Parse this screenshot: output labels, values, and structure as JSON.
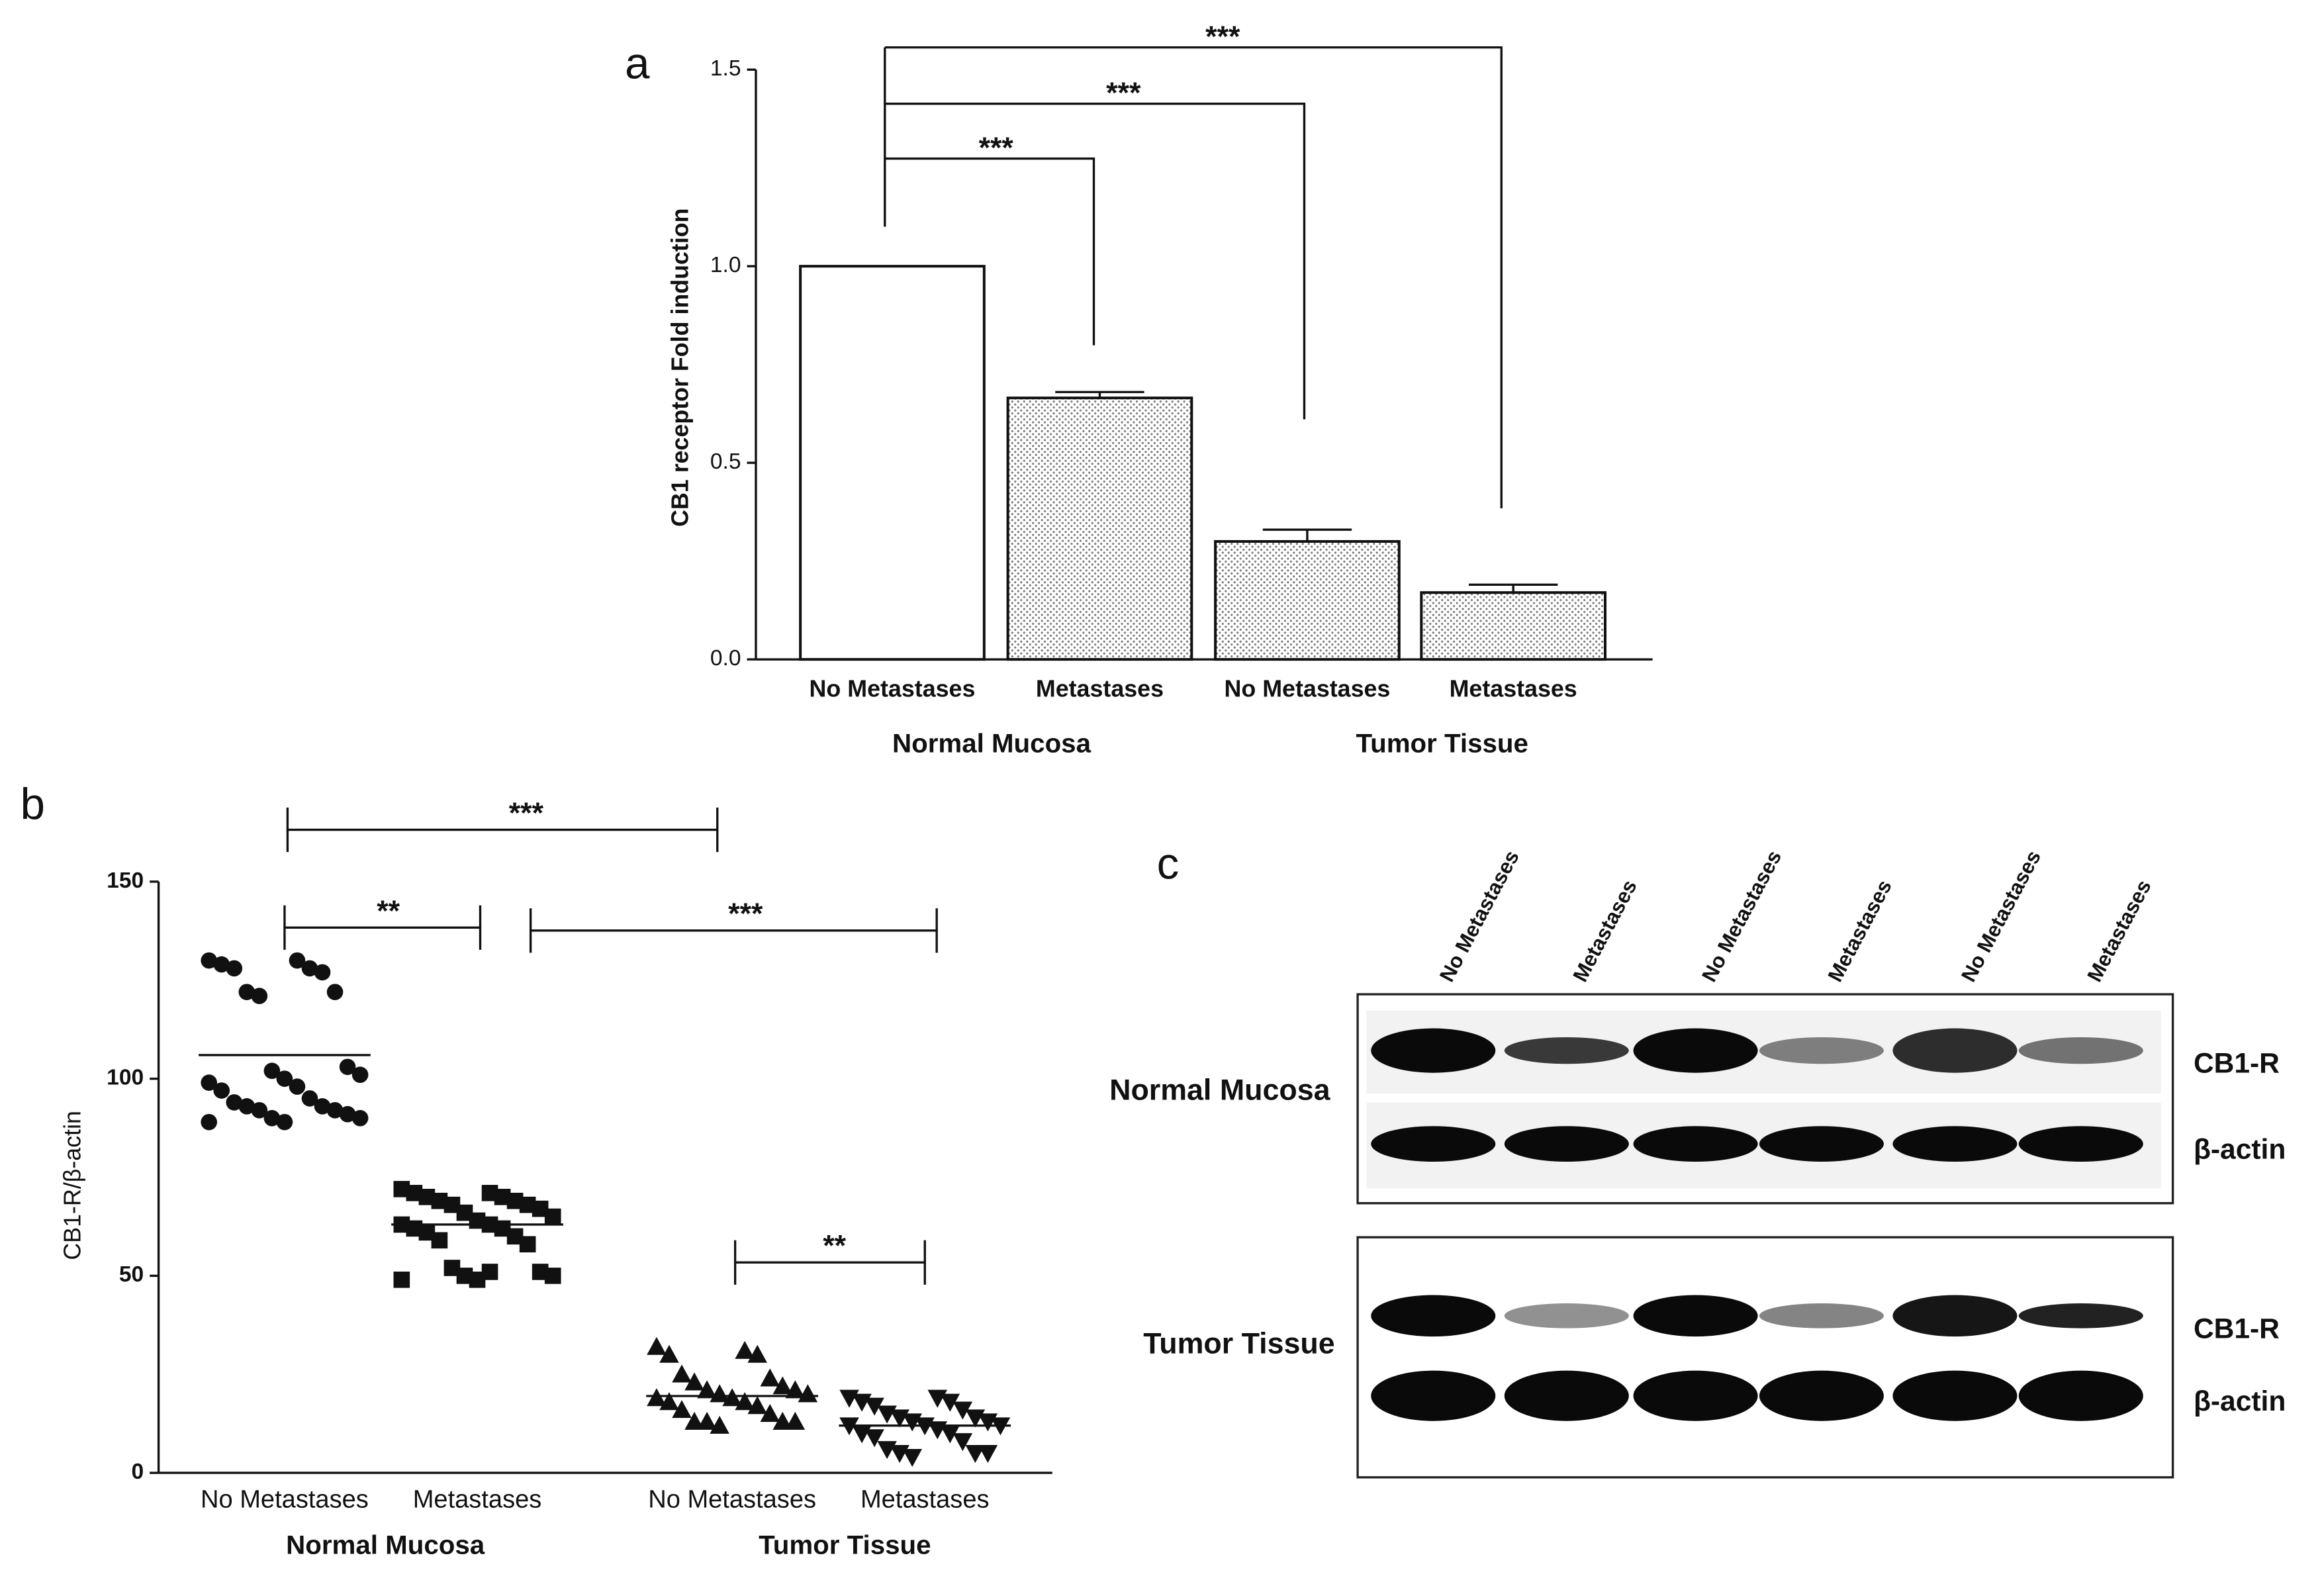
{
  "chart_data": [
    {
      "type": "bar",
      "panel_label": "a",
      "ylabel": "CB1 receptor Fold induction",
      "categories": [
        "No Metastases",
        "Metastases",
        "No Metastases",
        "Metastases"
      ],
      "groups": [
        "Normal Mucosa",
        "Tumor Tissue"
      ],
      "values": [
        1.0,
        0.665,
        0.3,
        0.17
      ],
      "errors": [
        0,
        0.015,
        0.03,
        0.02
      ],
      "ylim": [
        0,
        1.5
      ],
      "yticks": [
        {
          "value": 0,
          "label": "0.0"
        },
        {
          "value": 0.5,
          "label": "0.5"
        },
        {
          "value": 1,
          "label": "1.0"
        },
        {
          "value": 1.5,
          "label": "1.5"
        }
      ],
      "annotations": [
        "***",
        "***",
        "***"
      ]
    },
    {
      "type": "scatter",
      "panel_label": "b",
      "ylabel": "CB1-R/β-actin",
      "categories": [
        "No Metastases",
        "Metastases",
        "No Metastases",
        "Metastases"
      ],
      "groups": [
        "Normal Mucosa",
        "Tumor Tissue"
      ],
      "series": [
        {
          "marker": "circle",
          "values": [
            130,
            130,
            129,
            128,
            128,
            127,
            122,
            122,
            121,
            103,
            102,
            101,
            100,
            99,
            98,
            97,
            95,
            94,
            93,
            93,
            92,
            92,
            91,
            90,
            90,
            89,
            89
          ]
        },
        {
          "marker": "square",
          "values": [
            72,
            71,
            71,
            70,
            70,
            69,
            69,
            68,
            68,
            67,
            66,
            65,
            64,
            63,
            63,
            62,
            62,
            61,
            60,
            59,
            58,
            52,
            51,
            50,
            50,
            49,
            49,
            51
          ]
        },
        {
          "marker": "triangle",
          "values": [
            32,
            31,
            30,
            30,
            25,
            24,
            23,
            22,
            21,
            21,
            20,
            20,
            19,
            19,
            18,
            18,
            17,
            16,
            15,
            13,
            13,
            13,
            13,
            12
          ]
        },
        {
          "marker": "triangle-down",
          "values": [
            19,
            19,
            18,
            18,
            17,
            16,
            15,
            14,
            14,
            13,
            13,
            12,
            12,
            12,
            11,
            10,
            10,
            9,
            8,
            6,
            5,
            5,
            5,
            4
          ]
        }
      ],
      "means": [
        106,
        63,
        19.5,
        12
      ],
      "ylim": [
        0,
        150
      ],
      "yticks": [
        0,
        50,
        100,
        150
      ],
      "annotations": [
        "***",
        "**",
        "***",
        "**"
      ]
    }
  ],
  "blot": {
    "panel_label": "c",
    "lanes": [
      "No Metastases",
      "Metastases",
      "No Metastases",
      "Metastases",
      "No Metastases",
      "Metastases"
    ],
    "groups": [
      "Normal Mucosa",
      "Tumor Tissue"
    ],
    "bands": [
      "CB1-R",
      "β-actin"
    ]
  }
}
